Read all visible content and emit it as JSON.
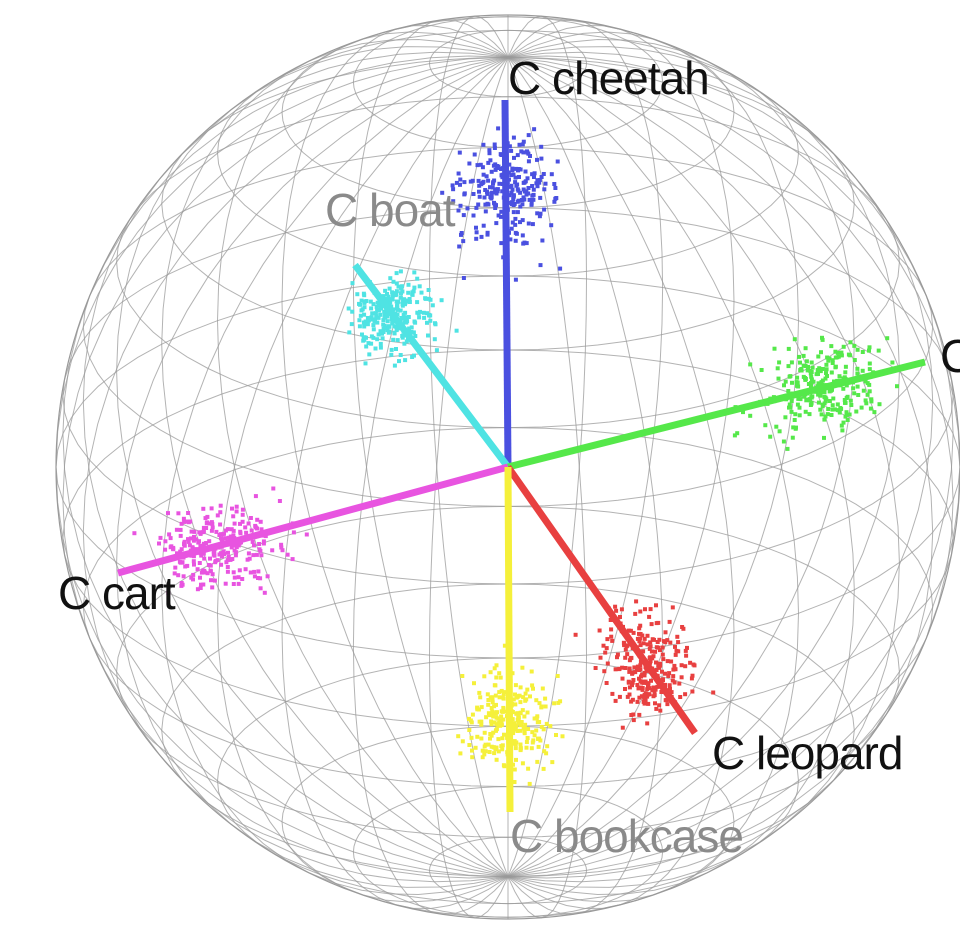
{
  "nodes": [
    {
      "label": "C cheetah"
    },
    {
      "label": "C boat"
    },
    {
      "label": "C"
    },
    {
      "label": "C cart"
    },
    {
      "label": "C leopard"
    },
    {
      "label": "C bookcase"
    }
  ]
}
